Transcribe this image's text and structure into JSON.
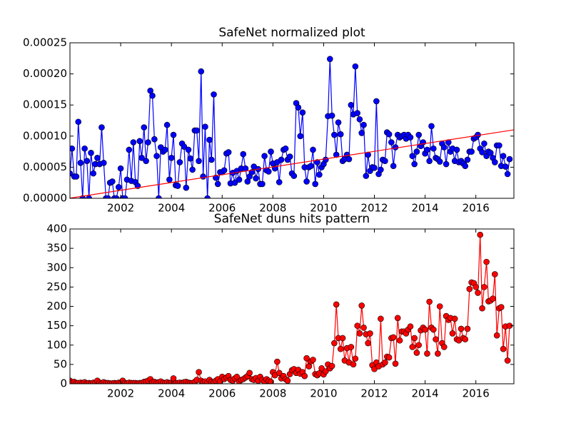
{
  "chart_data": [
    {
      "type": "line",
      "title": "SafeNet normalized plot",
      "xlim": [
        2000,
        2017.5
      ],
      "xticks": [
        2002,
        2004,
        2006,
        2008,
        2010,
        2012,
        2014,
        2016
      ],
      "ylim": [
        0,
        0.00025
      ],
      "yticks": [
        {
          "value": 0,
          "label": "0.00000"
        },
        {
          "value": 5e-05,
          "label": "0.00005"
        },
        {
          "value": 0.0001,
          "label": "0.00010"
        },
        {
          "value": 0.00015,
          "label": "0.00015"
        },
        {
          "value": 0.0002,
          "label": "0.00020"
        },
        {
          "value": 0.00025,
          "label": "0.00025"
        }
      ],
      "series": [
        {
          "color": "#0000ff",
          "markers": true,
          "x": [
            2000,
            2000.08,
            2000.17,
            2000.25,
            2000.33,
            2000.42,
            2000.5,
            2000.58,
            2000.67,
            2000.75,
            2000.83,
            2000.92,
            2001,
            2001.08,
            2001.17,
            2001.25,
            2001.33,
            2001.42,
            2001.5,
            2001.58,
            2001.67,
            2001.75,
            2001.83,
            2001.92,
            2002,
            2002.08,
            2002.17,
            2002.25,
            2002.33,
            2002.42,
            2002.5,
            2002.58,
            2002.67,
            2002.75,
            2002.83,
            2002.92,
            2003,
            2003.08,
            2003.17,
            2003.25,
            2003.33,
            2003.42,
            2003.5,
            2003.58,
            2003.67,
            2003.75,
            2003.83,
            2003.92,
            2004,
            2004.08,
            2004.17,
            2004.25,
            2004.33,
            2004.42,
            2004.5,
            2004.58,
            2004.67,
            2004.75,
            2004.83,
            2004.92,
            2005,
            2005.08,
            2005.17,
            2005.25,
            2005.33,
            2005.42,
            2005.5,
            2005.58,
            2005.67,
            2005.75,
            2005.83,
            2005.92,
            2006,
            2006.08,
            2006.17,
            2006.25,
            2006.33,
            2006.42,
            2006.5,
            2006.58,
            2006.67,
            2006.75,
            2006.83,
            2006.92,
            2007,
            2007.08,
            2007.17,
            2007.25,
            2007.33,
            2007.42,
            2007.5,
            2007.58,
            2007.67,
            2007.75,
            2007.83,
            2007.92,
            2008,
            2008.08,
            2008.17,
            2008.25,
            2008.33,
            2008.42,
            2008.5,
            2008.58,
            2008.67,
            2008.75,
            2008.83,
            2008.92,
            2009,
            2009.08,
            2009.17,
            2009.25,
            2009.33,
            2009.42,
            2009.5,
            2009.58,
            2009.67,
            2009.75,
            2009.83,
            2009.92,
            2010,
            2010.08,
            2010.17,
            2010.25,
            2010.33,
            2010.42,
            2010.5,
            2010.58,
            2010.67,
            2010.75,
            2010.83,
            2010.92,
            2011,
            2011.08,
            2011.17,
            2011.25,
            2011.33,
            2011.42,
            2011.5,
            2011.58,
            2011.67,
            2011.75,
            2011.83,
            2011.92,
            2012,
            2012.08,
            2012.17,
            2012.25,
            2012.33,
            2012.42,
            2012.5,
            2012.58,
            2012.67,
            2012.75,
            2012.83,
            2012.92,
            2013,
            2013.08,
            2013.17,
            2013.25,
            2013.33,
            2013.42,
            2013.5,
            2013.58,
            2013.67,
            2013.75,
            2013.83,
            2013.92,
            2014,
            2014.08,
            2014.17,
            2014.25,
            2014.33,
            2014.42,
            2014.5,
            2014.58,
            2014.67,
            2014.75,
            2014.83,
            2014.92,
            2015,
            2015.08,
            2015.17,
            2015.25,
            2015.33,
            2015.42,
            2015.5,
            2015.58,
            2015.67,
            2015.75,
            2015.83,
            2015.92,
            2016,
            2016.08,
            2016.17,
            2016.25,
            2016.33,
            2016.42,
            2016.5,
            2016.58,
            2016.67,
            2016.75,
            2016.83,
            2016.92,
            2017,
            2017.08,
            2017.17,
            2017.25,
            2017.33
          ],
          "values": [
            4e-05,
            8e-05,
            3.5e-05,
            3.5e-05,
            0.000123,
            5.7e-05,
            0,
            8e-05,
            6e-05,
            0,
            7.3e-05,
            4e-05,
            5.5e-05,
            6.5e-05,
            5.5e-05,
            0.000114,
            5.7e-05,
            0,
            0,
            2.5e-05,
            2.7e-05,
            0,
            0,
            1.8e-05,
            4.8e-05,
            0,
            0,
            3e-05,
            7.8e-05,
            2.8e-05,
            9e-05,
            2.6e-05,
            2e-05,
            9.2e-05,
            6.5e-05,
            0.000114,
            6e-05,
            9e-05,
            0.000173,
            0.000165,
            9.5e-05,
            6.8e-05,
            0,
            8.2e-05,
            7.5e-05,
            7.8e-05,
            0.000118,
            3e-05,
            6.5e-05,
            0.000102,
            2.1e-05,
            2e-05,
            5.8e-05,
            8.8e-05,
            8.3e-05,
            1.7e-05,
            7.8e-05,
            6.4e-05,
            4.6e-05,
            0.000109,
            0.000109,
            6e-05,
            0.000204,
            3.5e-05,
            0.000115,
            0,
            9.4e-05,
            6.2e-05,
            0.000167,
            3.3e-05,
            2.3e-05,
            4.2e-05,
            4.2e-05,
            4.5e-05,
            7.2e-05,
            7.4e-05,
            2.4e-05,
            4.1e-05,
            2.5e-05,
            4.4e-05,
            3e-05,
            4.8e-05,
            7.1e-05,
            4.8e-05,
            2.7e-05,
            3.5e-05,
            4.2e-05,
            5.1e-05,
            3.2e-05,
            4.7e-05,
            2.3e-05,
            2.3e-05,
            6.8e-05,
            4.5e-05,
            4.3e-05,
            7.5e-05,
            5.6e-05,
            4.8e-05,
            5.8e-05,
            2.6e-05,
            6.2e-05,
            7.8e-05,
            8e-05,
            6.2e-05,
            6.7e-05,
            4e-05,
            3.6e-05,
            0.000153,
            0.000146,
            0.0001,
            0.000138,
            5e-05,
            2.7e-05,
            5e-05,
            5.2e-05,
            7.8e-05,
            2.3e-05,
            5.8e-05,
            3.8e-05,
            5e-05,
            5.5e-05,
            6.2e-05,
            0.000132,
            0.000224,
            0.000133,
            0.000102,
            7e-05,
            0.000122,
            0.000103,
            6e-05,
            6.3e-05,
            7e-05,
            6.3e-05,
            0.00015,
            0.000135,
            0.000212,
            0.000137,
            0.000127,
            0.000105,
            0.000118,
            3.6e-05,
            7e-05,
            4.4e-05,
            5e-05,
            4.9e-05,
            0.000156,
            3.9e-05,
            4.6e-05,
            6.2e-05,
            6e-05,
            0.000106,
            0.000103,
            9e-05,
            5.2e-05,
            8.2e-05,
            0.000102,
            9.8e-05,
            0.0001,
            0.000102,
            9.6e-05,
            0.000102,
            9.8e-05,
            6.8e-05,
            5.5e-05,
            7.5e-05,
            0.000102,
            8.4e-05,
            9e-05,
            7.2e-05,
            7.8e-05,
            6e-05,
            0.000116,
            8e-05,
            6.5e-05,
            6.3e-05,
            5.9e-05,
            8.8e-05,
            8.2e-05,
            5.5e-05,
            9e-05,
            7.5e-05,
            8e-05,
            6e-05,
            7.8e-05,
            5.8e-05,
            6e-05,
            5.6e-05,
            5.2e-05,
            6.2e-05,
            7.5e-05,
            7.5e-05,
            9.6e-05,
            9.8e-05,
            0.000102,
            8e-05,
            7.4e-05,
            8.8e-05,
            6.8e-05,
            7.5e-05,
            7.3e-05,
            6.5e-05,
            5.8e-05,
            8.5e-05,
            8.5e-05,
            5.2e-05,
            6.8e-05,
            5.1e-05,
            3.9e-05,
            6.3e-05
          ]
        },
        {
          "color": "#ff0000",
          "markers": false,
          "x": [
            2000,
            2017.5
          ],
          "values": [
            3e-07,
            0.00011
          ]
        }
      ]
    },
    {
      "type": "line",
      "title": "SafeNet duns hits pattern",
      "xlim": [
        2000,
        2017.5
      ],
      "xticks": [
        2002,
        2004,
        2006,
        2008,
        2010,
        2012,
        2014,
        2016
      ],
      "ylim": [
        0,
        400
      ],
      "yticks": [
        0,
        50,
        100,
        150,
        200,
        250,
        300,
        350,
        400
      ],
      "series": [
        {
          "color": "#ff0000",
          "markers": true,
          "x": [
            2000,
            2000.08,
            2000.17,
            2000.25,
            2000.33,
            2000.42,
            2000.5,
            2000.58,
            2000.67,
            2000.75,
            2000.83,
            2000.92,
            2001,
            2001.08,
            2001.17,
            2001.25,
            2001.33,
            2001.42,
            2001.5,
            2001.58,
            2001.67,
            2001.75,
            2001.83,
            2001.92,
            2002,
            2002.08,
            2002.17,
            2002.25,
            2002.33,
            2002.42,
            2002.5,
            2002.58,
            2002.67,
            2002.75,
            2002.83,
            2002.92,
            2003,
            2003.08,
            2003.17,
            2003.25,
            2003.33,
            2003.42,
            2003.5,
            2003.58,
            2003.67,
            2003.75,
            2003.83,
            2003.92,
            2004,
            2004.08,
            2004.17,
            2004.25,
            2004.33,
            2004.42,
            2004.5,
            2004.58,
            2004.67,
            2004.75,
            2004.83,
            2004.92,
            2005,
            2005.08,
            2005.17,
            2005.25,
            2005.33,
            2005.42,
            2005.5,
            2005.58,
            2005.67,
            2005.75,
            2005.83,
            2005.92,
            2006,
            2006.08,
            2006.17,
            2006.25,
            2006.33,
            2006.42,
            2006.5,
            2006.58,
            2006.67,
            2006.75,
            2006.83,
            2006.92,
            2007,
            2007.08,
            2007.17,
            2007.25,
            2007.33,
            2007.42,
            2007.5,
            2007.58,
            2007.67,
            2007.75,
            2007.83,
            2007.92,
            2008,
            2008.08,
            2008.17,
            2008.25,
            2008.33,
            2008.42,
            2008.5,
            2008.58,
            2008.67,
            2008.75,
            2008.83,
            2008.92,
            2009,
            2009.08,
            2009.17,
            2009.25,
            2009.33,
            2009.42,
            2009.5,
            2009.58,
            2009.67,
            2009.75,
            2009.83,
            2009.92,
            2010,
            2010.08,
            2010.17,
            2010.25,
            2010.33,
            2010.42,
            2010.5,
            2010.58,
            2010.67,
            2010.75,
            2010.83,
            2010.92,
            2011,
            2011.08,
            2011.17,
            2011.25,
            2011.33,
            2011.42,
            2011.5,
            2011.58,
            2011.67,
            2011.75,
            2011.83,
            2011.92,
            2012,
            2012.08,
            2012.17,
            2012.25,
            2012.33,
            2012.42,
            2012.5,
            2012.58,
            2012.67,
            2012.75,
            2012.83,
            2012.92,
            2013,
            2013.08,
            2013.17,
            2013.25,
            2013.33,
            2013.42,
            2013.5,
            2013.58,
            2013.67,
            2013.75,
            2013.83,
            2013.92,
            2014,
            2014.08,
            2014.17,
            2014.25,
            2014.33,
            2014.42,
            2014.5,
            2014.58,
            2014.67,
            2014.75,
            2014.83,
            2014.92,
            2015,
            2015.08,
            2015.17,
            2015.25,
            2015.33,
            2015.42,
            2015.5,
            2015.58,
            2015.67,
            2015.75,
            2015.83,
            2015.92,
            2016,
            2016.08,
            2016.17,
            2016.25,
            2016.33,
            2016.42,
            2016.5,
            2016.58,
            2016.67,
            2016.75,
            2016.83,
            2016.92,
            2017,
            2017.08,
            2017.17,
            2017.25,
            2017.33
          ],
          "values": [
            8,
            3,
            5,
            2,
            2,
            3,
            2,
            4,
            1,
            2,
            1,
            3,
            2,
            8,
            3,
            1,
            4,
            2,
            2,
            1,
            1,
            2,
            1,
            3,
            2,
            8,
            2,
            1,
            3,
            2,
            2,
            2,
            1,
            2,
            2,
            5,
            6,
            8,
            12,
            4,
            5,
            3,
            4,
            6,
            3,
            2,
            4,
            2,
            3,
            14,
            2,
            2,
            3,
            2,
            4,
            5,
            3,
            2,
            2,
            5,
            10,
            30,
            8,
            4,
            6,
            3,
            10,
            5,
            4,
            8,
            12,
            6,
            18,
            12,
            16,
            20,
            10,
            8,
            14,
            18,
            6,
            10,
            12,
            16,
            20,
            28,
            12,
            10,
            15,
            8,
            18,
            10,
            6,
            12,
            8,
            5,
            30,
            22,
            57,
            28,
            14,
            20,
            12,
            8,
            25,
            35,
            38,
            28,
            36,
            26,
            30,
            20,
            66,
            45,
            58,
            62,
            25,
            22,
            27,
            40,
            24,
            32,
            50,
            40,
            46,
            105,
            205,
            118,
            90,
            118,
            60,
            92,
            55,
            95,
            50,
            65,
            150,
            130,
            202,
            145,
            128,
            105,
            130,
            48,
            38,
            55,
            45,
            168,
            50,
            55,
            70,
            68,
            118,
            120,
            52,
            170,
            112,
            135,
            135,
            130,
            140,
            148,
            95,
            118,
            80,
            100,
            138,
            145,
            140,
            78,
            212,
            145,
            140,
            115,
            78,
            200,
            105,
            95,
            175,
            165,
            170,
            130,
            168,
            115,
            112,
            142,
            118,
            115,
            142,
            245,
            262,
            260,
            250,
            235,
            385,
            195,
            250,
            315,
            213,
            215,
            220,
            283,
            125,
            195,
            198,
            90,
            148,
            60,
            150
          ]
        }
      ]
    }
  ]
}
